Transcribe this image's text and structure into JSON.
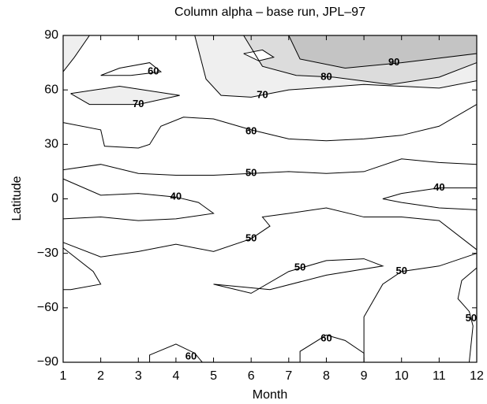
{
  "chart_data": {
    "type": "contour",
    "title": "Column alpha – base run, JPL–97",
    "xlabel": "Month",
    "ylabel": "Latitude",
    "xlim": [
      1,
      12
    ],
    "ylim": [
      -90,
      90
    ],
    "xticks": [
      1,
      2,
      3,
      4,
      5,
      6,
      7,
      8,
      9,
      10,
      11,
      12
    ],
    "yticks": [
      {
        "value": -90,
        "label": "−90"
      },
      {
        "value": -60,
        "label": "−60"
      },
      {
        "value": -30,
        "label": "−30"
      },
      0,
      30,
      60,
      90
    ],
    "contours": [
      {
        "fill": "#efefef",
        "x": [
          4.5,
          4.8,
          5.2,
          6,
          7,
          9,
          11,
          12,
          12
        ],
        "y": [
          90,
          66,
          57,
          56,
          60,
          63,
          61,
          65,
          90
        ]
      },
      {
        "fill": "#dcdcdc",
        "x": [
          5.8,
          6.3,
          7.2,
          8.2,
          9.7,
          11,
          12,
          12
        ],
        "y": [
          90,
          73,
          68,
          67,
          63,
          67,
          75,
          90
        ]
      },
      {
        "fill": "#c4c4c4",
        "x": [
          7,
          7.3,
          8.5,
          10,
          12,
          12
        ],
        "y": [
          90,
          77,
          72,
          75,
          80,
          90
        ]
      },
      {
        "fill": "#efefef",
        "x": [
          1,
          1.3,
          1.7,
          1
        ],
        "y": [
          70,
          78,
          90,
          90
        ]
      },
      {
        "fill": "#ffffff",
        "x": [
          5.8,
          6.3,
          6.6,
          6.2,
          5.8
        ],
        "y": [
          80,
          82,
          78,
          76,
          80
        ]
      },
      {
        "fill": "#efefef",
        "x": [
          1.2,
          2.5,
          4.1,
          3,
          1.7,
          1.2
        ],
        "y": [
          58,
          62,
          57,
          52,
          52,
          58
        ]
      },
      {
        "x": [
          2,
          2.5,
          3.3,
          3.6,
          2.8,
          2
        ],
        "y": [
          68,
          72,
          75,
          70,
          68,
          68
        ]
      },
      {
        "x": [
          1,
          2,
          2.1,
          3,
          3.3,
          3.6,
          4.2,
          5,
          6,
          7,
          8,
          9,
          10,
          11,
          12
        ],
        "y": [
          42,
          38,
          29,
          28,
          30,
          40,
          45,
          44,
          38,
          33,
          32,
          33,
          35,
          40,
          52
        ]
      },
      {
        "x": [
          1,
          2,
          3,
          4,
          5,
          6,
          7,
          8,
          9,
          10,
          11,
          12
        ],
        "y": [
          16,
          19,
          14,
          13,
          13,
          14,
          15,
          14,
          15,
          22,
          20,
          19
        ]
      },
      {
        "x": [
          1,
          2,
          3,
          4,
          4.6,
          5,
          4,
          3,
          2,
          1
        ],
        "y": [
          11,
          2,
          3,
          1,
          -2,
          -8,
          -11,
          -12,
          -10,
          -11
        ]
      },
      {
        "x": [
          12,
          11,
          10,
          9.5,
          10,
          11,
          12
        ],
        "y": [
          6,
          6,
          3,
          0,
          -2,
          -5,
          -6
        ]
      },
      {
        "x": [
          1,
          2,
          3,
          4,
          5,
          6,
          6.5,
          6.3,
          7,
          8,
          9,
          10,
          11,
          12
        ],
        "y": [
          -24,
          -32,
          -29,
          -25,
          -29,
          -22,
          -15,
          -10,
          -8,
          -5,
          -10,
          -10,
          -12,
          -28
        ]
      },
      {
        "x": [
          5,
          6,
          7,
          8,
          9,
          9.5,
          8,
          6.5,
          5
        ],
        "y": [
          -47,
          -52,
          -40,
          -34,
          -33,
          -37,
          -42,
          -50,
          -47
        ]
      },
      {
        "x": [
          1,
          1.8,
          2,
          1.2,
          1
        ],
        "y": [
          -27,
          -40,
          -47,
          -50,
          -50
        ]
      },
      {
        "x": [
          12,
          11,
          10,
          9.5,
          9,
          9
        ],
        "y": [
          -30,
          -37,
          -40,
          -47,
          -65,
          -90
        ]
      },
      {
        "x": [
          12,
          11.6,
          11.5,
          11.8,
          11.9,
          11.8
        ],
        "y": [
          -38,
          -45,
          -55,
          -62,
          -70,
          -90
        ]
      },
      {
        "x": [
          7.3,
          7.3,
          8,
          8.5,
          9,
          9
        ],
        "y": [
          -90,
          -84,
          -75,
          -78,
          -85,
          -90
        ]
      },
      {
        "x": [
          3.3,
          3.3,
          4,
          4.5,
          4.7
        ],
        "y": [
          -90,
          -86,
          -80,
          -85,
          -90
        ]
      }
    ],
    "labels": [
      {
        "level": 90,
        "x": 9.8,
        "y": 75
      },
      {
        "level": 80,
        "x": 8,
        "y": 67
      },
      {
        "level": 70,
        "x": 6.3,
        "y": 57
      },
      {
        "level": 60,
        "x": 3.4,
        "y": 70
      },
      {
        "level": 70,
        "x": 3,
        "y": 52
      },
      {
        "level": 60,
        "x": 6,
        "y": 37
      },
      {
        "level": 50,
        "x": 6,
        "y": 14
      },
      {
        "level": 40,
        "x": 4,
        "y": 1
      },
      {
        "level": 40,
        "x": 11,
        "y": 6
      },
      {
        "level": 50,
        "x": 6,
        "y": -22
      },
      {
        "level": 50,
        "x": 7.3,
        "y": -38
      },
      {
        "level": 50,
        "x": 10,
        "y": -40
      },
      {
        "level": 50,
        "x": 11.85,
        "y": -66
      },
      {
        "level": 60,
        "x": 8,
        "y": -77
      },
      {
        "level": 60,
        "x": 4.4,
        "y": -87
      }
    ]
  }
}
